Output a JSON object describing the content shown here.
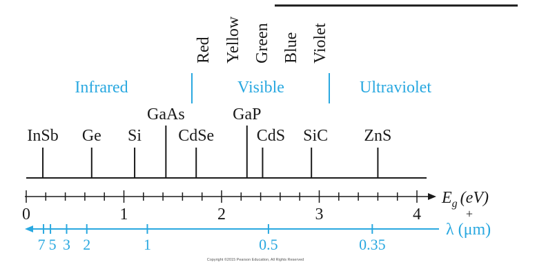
{
  "colors": {
    "black": "#1a1a1a",
    "accent": "#29a8e0"
  },
  "spectrum_colors": [
    "Red",
    "Yellow",
    "Green",
    "Blue",
    "Violet"
  ],
  "regions": {
    "infrared": "Infrared",
    "visible": "Visible",
    "ultraviolet": "Ultraviolet"
  },
  "materials": [
    {
      "label": "InSb",
      "eg": 0.17
    },
    {
      "label": "Ge",
      "eg": 0.67
    },
    {
      "label": "Si",
      "eg": 1.11
    },
    {
      "label": "GaAs",
      "eg": 1.43
    },
    {
      "label": "CdSe",
      "eg": 1.74
    },
    {
      "label": "GaP",
      "eg": 2.26
    },
    {
      "label": "CdS",
      "eg": 2.42
    },
    {
      "label": "SiC",
      "eg": 2.92
    },
    {
      "label": "ZnS",
      "eg": 3.6
    }
  ],
  "energy_axis": {
    "label_main": "E",
    "label_sub": "g",
    "label_unit": "(eV)",
    "plus": "+",
    "ticks": [
      "0",
      "1",
      "2",
      "3",
      "4"
    ]
  },
  "wavelength_axis": {
    "label": "λ (μm)",
    "ticks": [
      "7",
      "5",
      "3",
      "2",
      "1",
      "0.5",
      "0.35"
    ]
  },
  "copyright": "Copyright ©2015 Pearson Education, All Rights Reserved"
}
